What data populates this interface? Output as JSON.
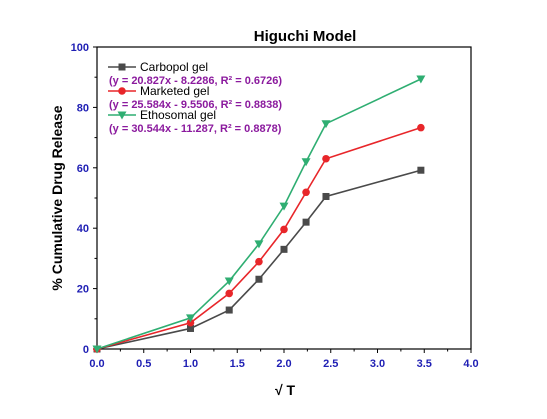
{
  "chart_data": {
    "type": "line",
    "title": "Higuchi Model",
    "xlabel": "√ T",
    "ylabel": "% Cumulative Drug Release",
    "xlim": [
      0,
      4
    ],
    "ylim": [
      0,
      100
    ],
    "xticks": [
      "0.0",
      "0.5",
      "1.0",
      "1.5",
      "2.0",
      "2.5",
      "3.0",
      "3.5",
      "4.0"
    ],
    "yticks": [
      "0",
      "20",
      "40",
      "60",
      "80",
      "100"
    ],
    "x": [
      0,
      1,
      1.414,
      1.732,
      2,
      2.236,
      2.449,
      3.464
    ],
    "grid": false,
    "legend_position": "top-left",
    "series": [
      {
        "name": "Carbopol gel",
        "equation": "(y = 20.827x - 8.2286, R² = 0.6726)",
        "color": "#4a4a4a",
        "marker": "square",
        "values": [
          0,
          6.8,
          12.9,
          23.1,
          33.0,
          42.0,
          50.5,
          59.2
        ]
      },
      {
        "name": "Marketed gel",
        "equation": "(y = 25.584x - 9.5506, R² = 0.8838)",
        "color": "#e8262a",
        "marker": "circle",
        "values": [
          0,
          8.7,
          18.4,
          28.9,
          39.6,
          51.9,
          63.0,
          73.3
        ]
      },
      {
        "name": "Ethosomal gel",
        "equation": "(y = 30.544x - 11.287, R² = 0.8878)",
        "color": "#2fae72",
        "marker": "triangle-down",
        "values": [
          0,
          10.3,
          22.5,
          34.8,
          47.3,
          62.0,
          74.6,
          89.4
        ]
      }
    ]
  }
}
